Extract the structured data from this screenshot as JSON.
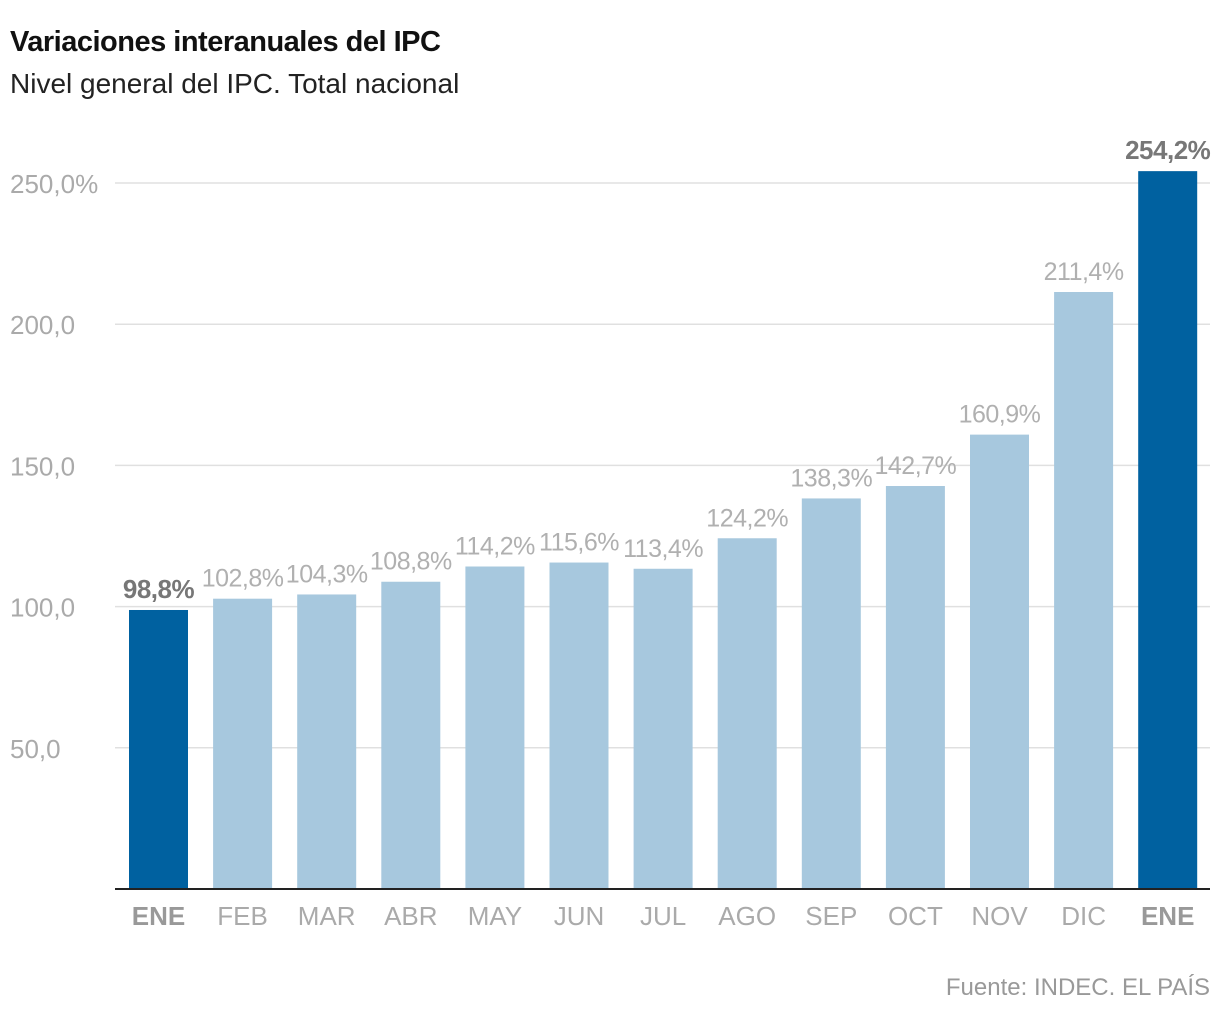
{
  "chart_data": {
    "type": "bar",
    "title": "Variaciones interanuales del IPC",
    "subtitle": "Nivel general del IPC. Total nacional",
    "source": "Fuente: INDEC. EL PAÍS",
    "categories": [
      "ENE",
      "FEB",
      "MAR",
      "ABR",
      "MAY",
      "JUN",
      "JUL",
      "AGO",
      "SEP",
      "OCT",
      "NOV",
      "DIC",
      "ENE"
    ],
    "values": [
      98.8,
      102.8,
      104.3,
      108.8,
      114.2,
      115.6,
      113.4,
      124.2,
      138.3,
      142.7,
      160.9,
      211.4,
      254.2
    ],
    "data_labels": [
      "98,8%",
      "102,8%",
      "104,3%",
      "108,8%",
      "114,2%",
      "115,6%",
      "113,4%",
      "124,2%",
      "138,3%",
      "142,7%",
      "160,9%",
      "211,4%",
      "254,2%"
    ],
    "highlighted": [
      true,
      false,
      false,
      false,
      false,
      false,
      false,
      false,
      false,
      false,
      false,
      false,
      true
    ],
    "yticks": [
      50,
      100,
      150,
      200,
      250
    ],
    "ytick_labels": [
      "50,0",
      "100,0",
      "150,0",
      "200,0",
      "250,0%"
    ],
    "ylim": [
      0,
      260
    ],
    "grid": true,
    "colors": {
      "highlight": "#0061a0",
      "normal": "#a7c8de",
      "label_highlight": "#777777",
      "label_normal": "#b0b0b0"
    }
  }
}
